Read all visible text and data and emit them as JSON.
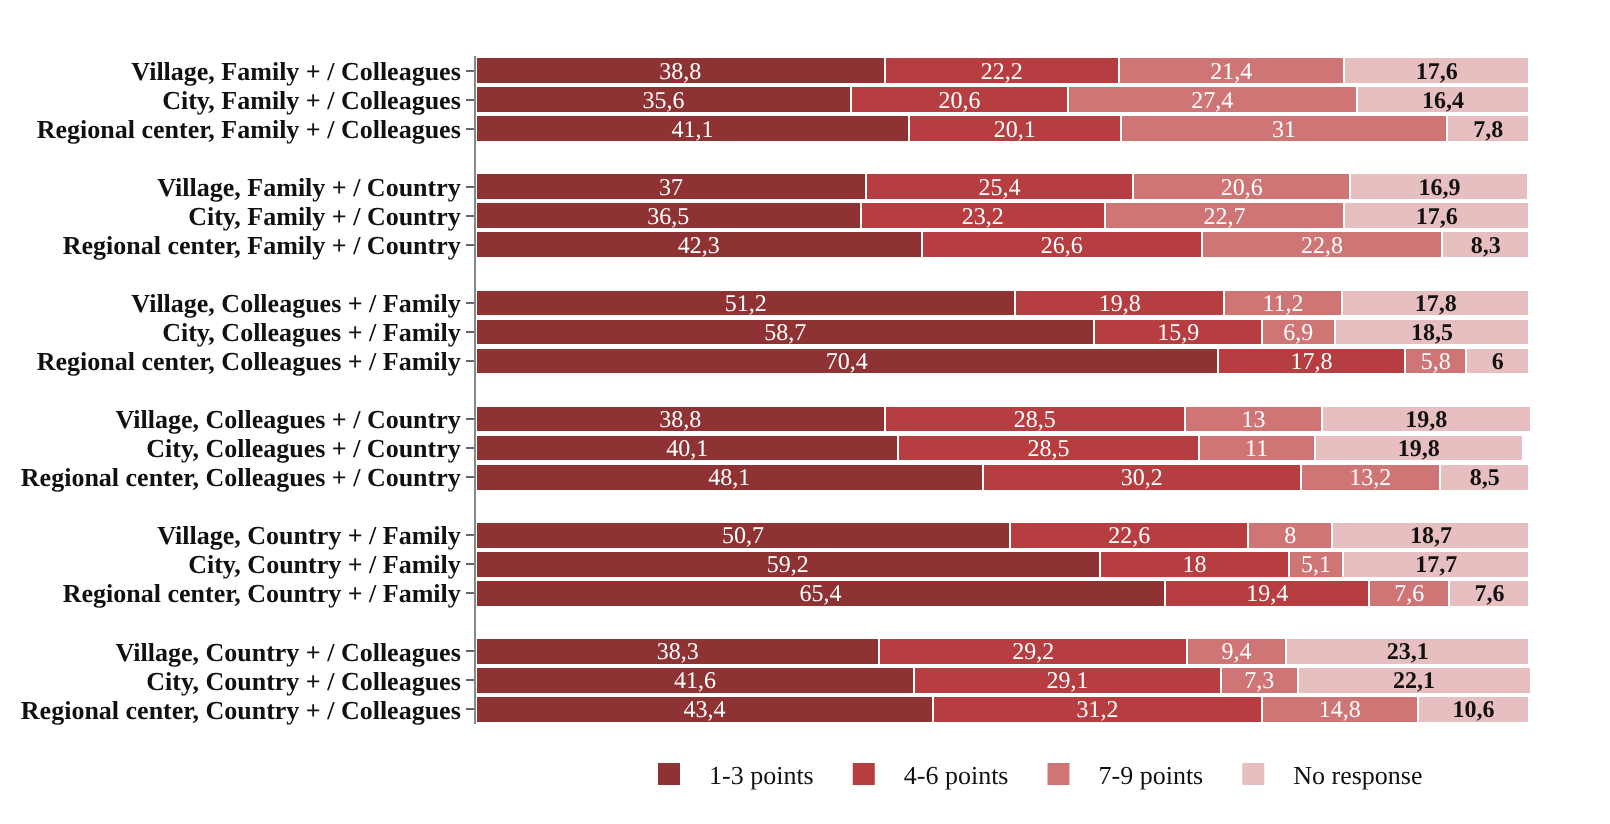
{
  "chart_data": {
    "type": "bar",
    "orientation": "horizontal",
    "stacked": true,
    "legend": "bottom",
    "categories": [
      "Village, Family + / Colleagues",
      "City, Family + / Colleagues",
      "Regional center, Family + / Colleagues",
      null,
      "Village, Family + / Country",
      "City, Family + / Country",
      "Regional center, Family + / Country",
      null,
      "Village, Colleagues + / Family",
      "City, Colleagues + / Family",
      "Regional center, Colleagues + / Family",
      null,
      "Village, Colleagues + / Country",
      "City, Colleagues + / Country",
      "Regional center, Colleagues + / Country",
      null,
      "Village, Country + / Family",
      "City, Country + / Family",
      "Regional center, Country + / Family",
      null,
      "Village, Country + / Colleagues",
      "City, Country + / Colleagues",
      "Regional center, Country + / Colleagues"
    ],
    "series": [
      {
        "name": "1-3 points",
        "color": "#8e3234",
        "values": [
          38.8,
          35.6,
          41.1,
          null,
          37,
          36.5,
          42.3,
          null,
          51.2,
          58.7,
          70.4,
          null,
          38.8,
          40.1,
          48.1,
          null,
          50.7,
          59.2,
          65.4,
          null,
          38.3,
          41.6,
          43.4
        ],
        "value_labels": [
          "38,8",
          "35,6",
          "41,1",
          null,
          "37",
          "36,5",
          "42,3",
          null,
          "51,2",
          "58,7",
          "70,4",
          null,
          "38,8",
          "40,1",
          "48,1",
          null,
          "50,7",
          "59,2",
          "65,4",
          null,
          "38,3",
          "41,6",
          "43,4"
        ]
      },
      {
        "name": "4-6 points",
        "color": "#b63e40",
        "values": [
          22.2,
          20.6,
          20.1,
          null,
          25.4,
          23.2,
          26.6,
          null,
          19.8,
          15.9,
          17.8,
          null,
          28.5,
          28.5,
          30.2,
          null,
          22.6,
          18,
          19.4,
          null,
          29.2,
          29.1,
          31.2
        ],
        "value_labels": [
          "22,2",
          "20,6",
          "20,1",
          null,
          "25,4",
          "23,2",
          "26,6",
          null,
          "19,8",
          "15,9",
          "17,8",
          null,
          "28,5",
          "28,5",
          "30,2",
          null,
          "22,6",
          "18",
          "19,4",
          null,
          "29,2",
          "29,1",
          "31,2"
        ]
      },
      {
        "name": "7-9 points",
        "color": "#cf7576",
        "values": [
          21.4,
          27.4,
          31,
          null,
          20.6,
          22.7,
          22.8,
          null,
          11.2,
          6.9,
          5.8,
          null,
          13,
          11,
          13.2,
          null,
          8,
          5.1,
          7.6,
          null,
          9.4,
          7.3,
          14.8
        ],
        "value_labels": [
          "21,4",
          "27,4",
          "31",
          null,
          "20,6",
          "22,7",
          "22,8",
          null,
          "11,2",
          "6,9",
          "5,8",
          null,
          "13",
          "11",
          "13,2",
          null,
          "8",
          "5,1",
          "7,6",
          null,
          "9,4",
          "7,3",
          "14,8"
        ]
      },
      {
        "name": "No response",
        "color": "#e8bfc0",
        "values": [
          17.6,
          16.4,
          7.8,
          null,
          16.9,
          17.6,
          8.3,
          null,
          17.8,
          18.5,
          6,
          null,
          19.8,
          19.8,
          8.5,
          null,
          18.7,
          17.7,
          7.6,
          null,
          23.1,
          22.1,
          10.6
        ],
        "value_labels": [
          "17,6",
          "16,4",
          "7,8",
          null,
          "16,9",
          "17,6",
          "8,3",
          null,
          "17,8",
          "18,5",
          "6",
          null,
          "19,8",
          "19,8",
          "8,5",
          null,
          "18,7",
          "17,7",
          "7,6",
          null,
          "23,1",
          "22,1",
          "10,6"
        ]
      }
    ]
  }
}
